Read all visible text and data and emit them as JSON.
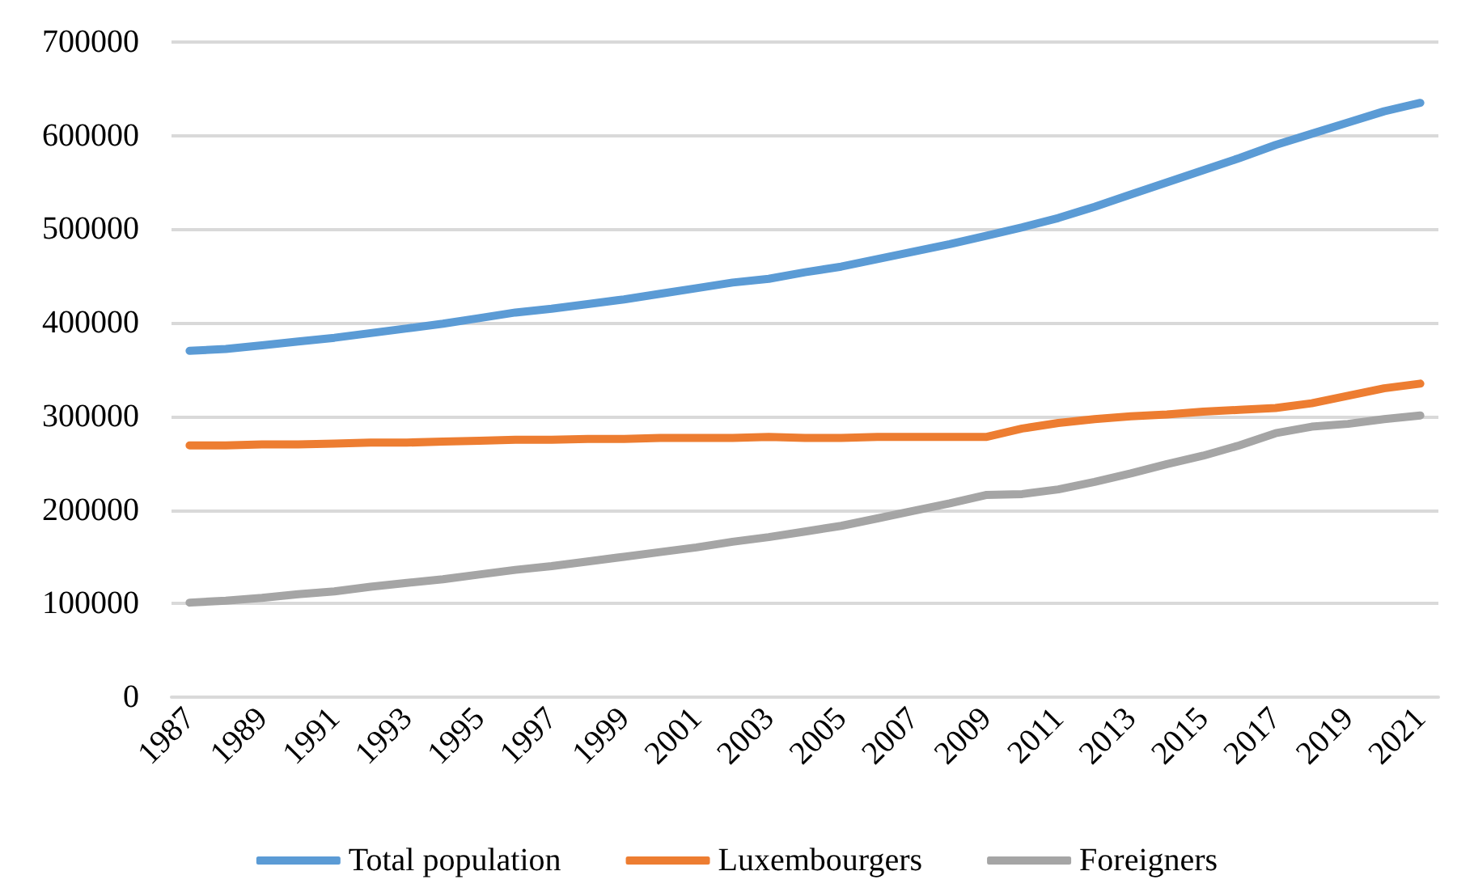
{
  "chart_data": {
    "type": "line",
    "categories": [
      "1987",
      null,
      "1989",
      null,
      "1991",
      null,
      "1993",
      null,
      "1995",
      null,
      "1997",
      null,
      "1999",
      null,
      "2001",
      null,
      "2003",
      null,
      "2005",
      null,
      "2007",
      null,
      "2009",
      null,
      "2011",
      null,
      "2013",
      null,
      "2015",
      null,
      "2017",
      null,
      "2019",
      null,
      "2021"
    ],
    "series": [
      {
        "name": "Total population",
        "color": "#5b9bd5",
        "values": [
          370000,
          372000,
          376000,
          380000,
          384000,
          389000,
          394000,
          399000,
          405000,
          411000,
          415000,
          420000,
          425000,
          431000,
          437000,
          443000,
          447000,
          454000,
          460000,
          468000,
          476000,
          484000,
          493000,
          502000,
          512000,
          524000,
          537000,
          550000,
          563000,
          576000,
          590000,
          602000,
          614000,
          626000,
          635000
        ]
      },
      {
        "name": "Luxembourgers",
        "color": "#ed7d31",
        "values": [
          269000,
          269000,
          270000,
          270000,
          271000,
          272000,
          272000,
          273000,
          274000,
          275000,
          275000,
          276000,
          276000,
          277000,
          277000,
          277000,
          278000,
          277000,
          277000,
          278000,
          278000,
          278000,
          278000,
          287000,
          293000,
          297000,
          300000,
          302000,
          305000,
          307000,
          309000,
          314000,
          322000,
          330000,
          335000
        ]
      },
      {
        "name": "Foreigners",
        "color": "#a5a5a5",
        "values": [
          101000,
          103000,
          106000,
          110000,
          113000,
          118000,
          122000,
          126000,
          131000,
          136000,
          140000,
          145000,
          150000,
          155000,
          160000,
          166000,
          171000,
          177000,
          183000,
          191000,
          199000,
          207000,
          216000,
          217000,
          222000,
          230000,
          239000,
          249000,
          258000,
          269000,
          282000,
          289000,
          292000,
          297000,
          301000
        ]
      }
    ],
    "ylim": [
      0,
      700000
    ],
    "yticks": [
      0,
      100000,
      200000,
      300000,
      400000,
      500000,
      600000,
      700000
    ],
    "grid": "y",
    "legend": "bottom",
    "marker": "none",
    "line_style": "solid"
  }
}
